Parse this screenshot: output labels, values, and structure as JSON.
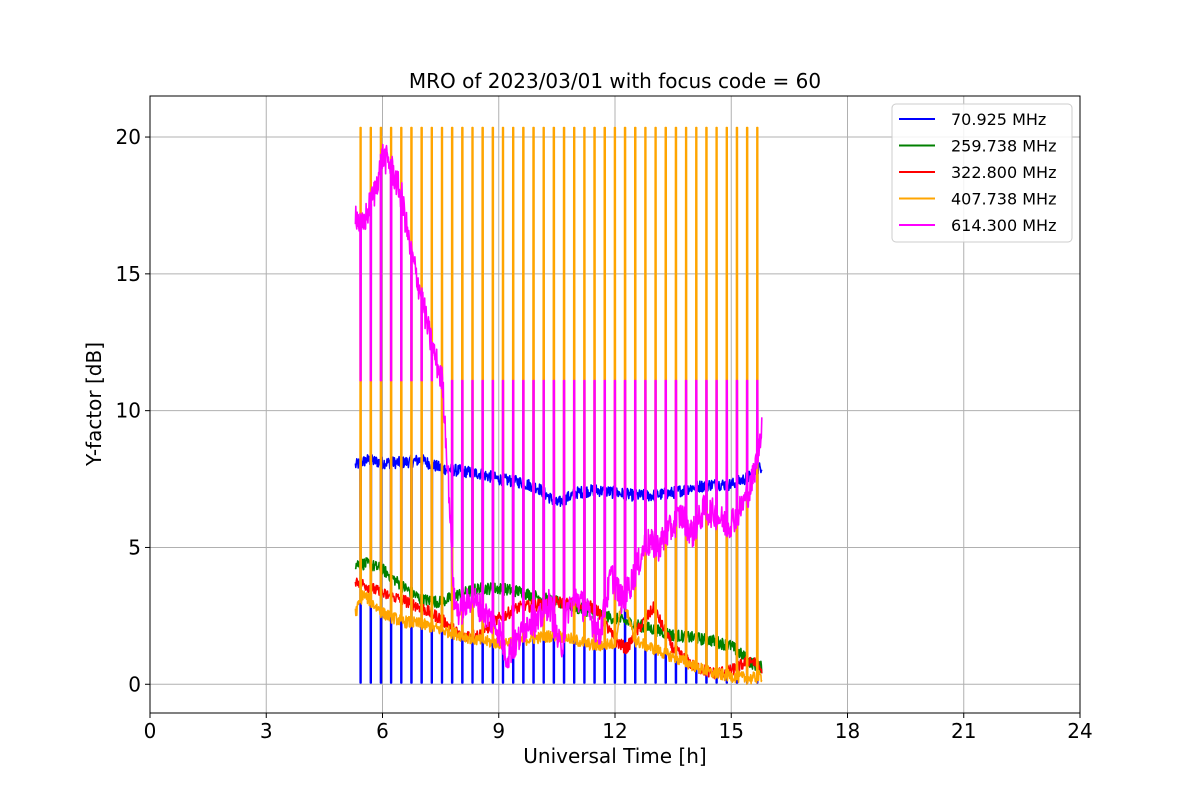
{
  "chart_data": {
    "type": "line",
    "title": "MRO of 2023/03/01 with focus code = 60",
    "xlabel": "Universal Time [h]",
    "ylabel": "Y-factor [dB]",
    "xlim": [
      0,
      24
    ],
    "ylim": [
      -1.05,
      21.5
    ],
    "xticks": [
      0,
      3,
      6,
      9,
      12,
      15,
      18,
      21,
      24
    ],
    "xtick_labels": [
      "0",
      "3",
      "6",
      "9",
      "12",
      "15",
      "18",
      "21",
      "24"
    ],
    "yticks": [
      0,
      5,
      10,
      15,
      20
    ],
    "ytick_labels": [
      "0",
      "5",
      "10",
      "15",
      "20"
    ],
    "grid": true,
    "legend_position": "top-right",
    "sweep": {
      "start_h": 5.42,
      "period_h": 0.2625,
      "count": 40,
      "end_h": 15.8
    },
    "series": [
      {
        "name": " 70.925 MHz",
        "color": "#0000ff",
        "spike_to": 0.05,
        "x": [
          5.3,
          5.6,
          6.0,
          6.5,
          7.0,
          7.5,
          8.0,
          8.5,
          9.0,
          9.5,
          10.0,
          10.5,
          11.0,
          11.5,
          12.0,
          12.5,
          13.0,
          13.5,
          14.0,
          14.5,
          15.0,
          15.5,
          15.8
        ],
        "y": [
          8.0,
          8.2,
          8.1,
          8.1,
          8.2,
          7.9,
          7.8,
          7.7,
          7.5,
          7.4,
          7.2,
          6.6,
          7.0,
          7.1,
          7.0,
          6.9,
          6.9,
          7.0,
          7.2,
          7.3,
          7.3,
          7.6,
          8.0
        ]
      },
      {
        "name": "259.738 MHz",
        "color": "#008000",
        "x": [
          5.3,
          5.6,
          6.0,
          6.5,
          7.0,
          7.5,
          8.0,
          8.5,
          9.0,
          9.5,
          10.0,
          10.5,
          11.0,
          11.5,
          12.0,
          12.5,
          13.0,
          13.5,
          14.0,
          14.5,
          15.0,
          15.5,
          15.8
        ],
        "y": [
          4.4,
          4.4,
          4.2,
          3.6,
          3.1,
          3.0,
          3.3,
          3.5,
          3.5,
          3.4,
          3.2,
          3.0,
          2.8,
          2.6,
          2.4,
          2.2,
          2.0,
          1.8,
          1.7,
          1.6,
          1.4,
          0.8,
          0.6
        ]
      },
      {
        "name": "322.800 MHz",
        "color": "#ff0000",
        "x": [
          5.3,
          5.6,
          6.0,
          6.5,
          7.0,
          7.5,
          8.0,
          8.5,
          9.0,
          9.5,
          10.0,
          10.5,
          11.0,
          11.5,
          12.0,
          12.3,
          12.6,
          13.0,
          13.5,
          14.0,
          14.5,
          15.0,
          15.5,
          15.8
        ],
        "y": [
          3.8,
          3.6,
          3.3,
          3.1,
          2.8,
          2.4,
          1.8,
          1.8,
          2.4,
          2.8,
          2.9,
          3.0,
          2.9,
          2.8,
          1.6,
          1.3,
          2.0,
          2.8,
          1.3,
          0.7,
          0.4,
          0.5,
          0.9,
          0.5
        ]
      },
      {
        "name": "407.738 MHz",
        "color": "#ffa500",
        "spike_to": 20.35,
        "x": [
          5.3,
          5.5,
          6.0,
          6.5,
          7.0,
          7.5,
          8.0,
          8.5,
          9.0,
          9.5,
          10.0,
          10.5,
          11.0,
          11.5,
          12.0,
          12.2,
          12.5,
          13.0,
          13.5,
          14.0,
          14.5,
          15.0,
          15.5,
          15.8
        ],
        "y": [
          2.6,
          3.3,
          2.6,
          2.3,
          2.2,
          2.0,
          1.8,
          1.6,
          1.5,
          1.6,
          1.7,
          1.8,
          1.6,
          1.4,
          1.5,
          3.2,
          1.6,
          1.3,
          1.0,
          0.7,
          0.4,
          0.3,
          0.2,
          0.3
        ]
      },
      {
        "name": "614.300 MHz",
        "color": "#ff00ff",
        "spike_to": 11.1,
        "x": [
          5.3,
          5.45,
          5.6,
          5.8,
          6.0,
          6.2,
          6.5,
          6.7,
          7.0,
          7.2,
          7.35,
          7.55,
          7.7,
          7.85,
          8.0,
          8.3,
          8.7,
          9.0,
          9.2,
          9.5,
          9.8,
          10.0,
          10.3,
          10.6,
          10.8,
          11.0,
          11.3,
          11.6,
          11.9,
          12.2,
          12.5,
          12.8,
          13.1,
          13.4,
          13.7,
          14.0,
          14.3,
          14.6,
          14.9,
          15.2,
          15.5,
          15.7,
          15.8
        ],
        "y": [
          17.3,
          16.6,
          17.2,
          18.0,
          19.3,
          19.0,
          17.8,
          16.0,
          14.2,
          12.8,
          12.0,
          11.0,
          7.5,
          3.0,
          2.6,
          3.2,
          2.5,
          2.0,
          1.0,
          1.6,
          2.4,
          2.2,
          3.0,
          1.2,
          2.8,
          3.2,
          2.6,
          1.8,
          4.0,
          3.0,
          4.0,
          5.2,
          5.0,
          5.6,
          6.2,
          5.5,
          6.4,
          6.2,
          5.8,
          6.3,
          7.2,
          8.5,
          9.8
        ]
      }
    ]
  }
}
